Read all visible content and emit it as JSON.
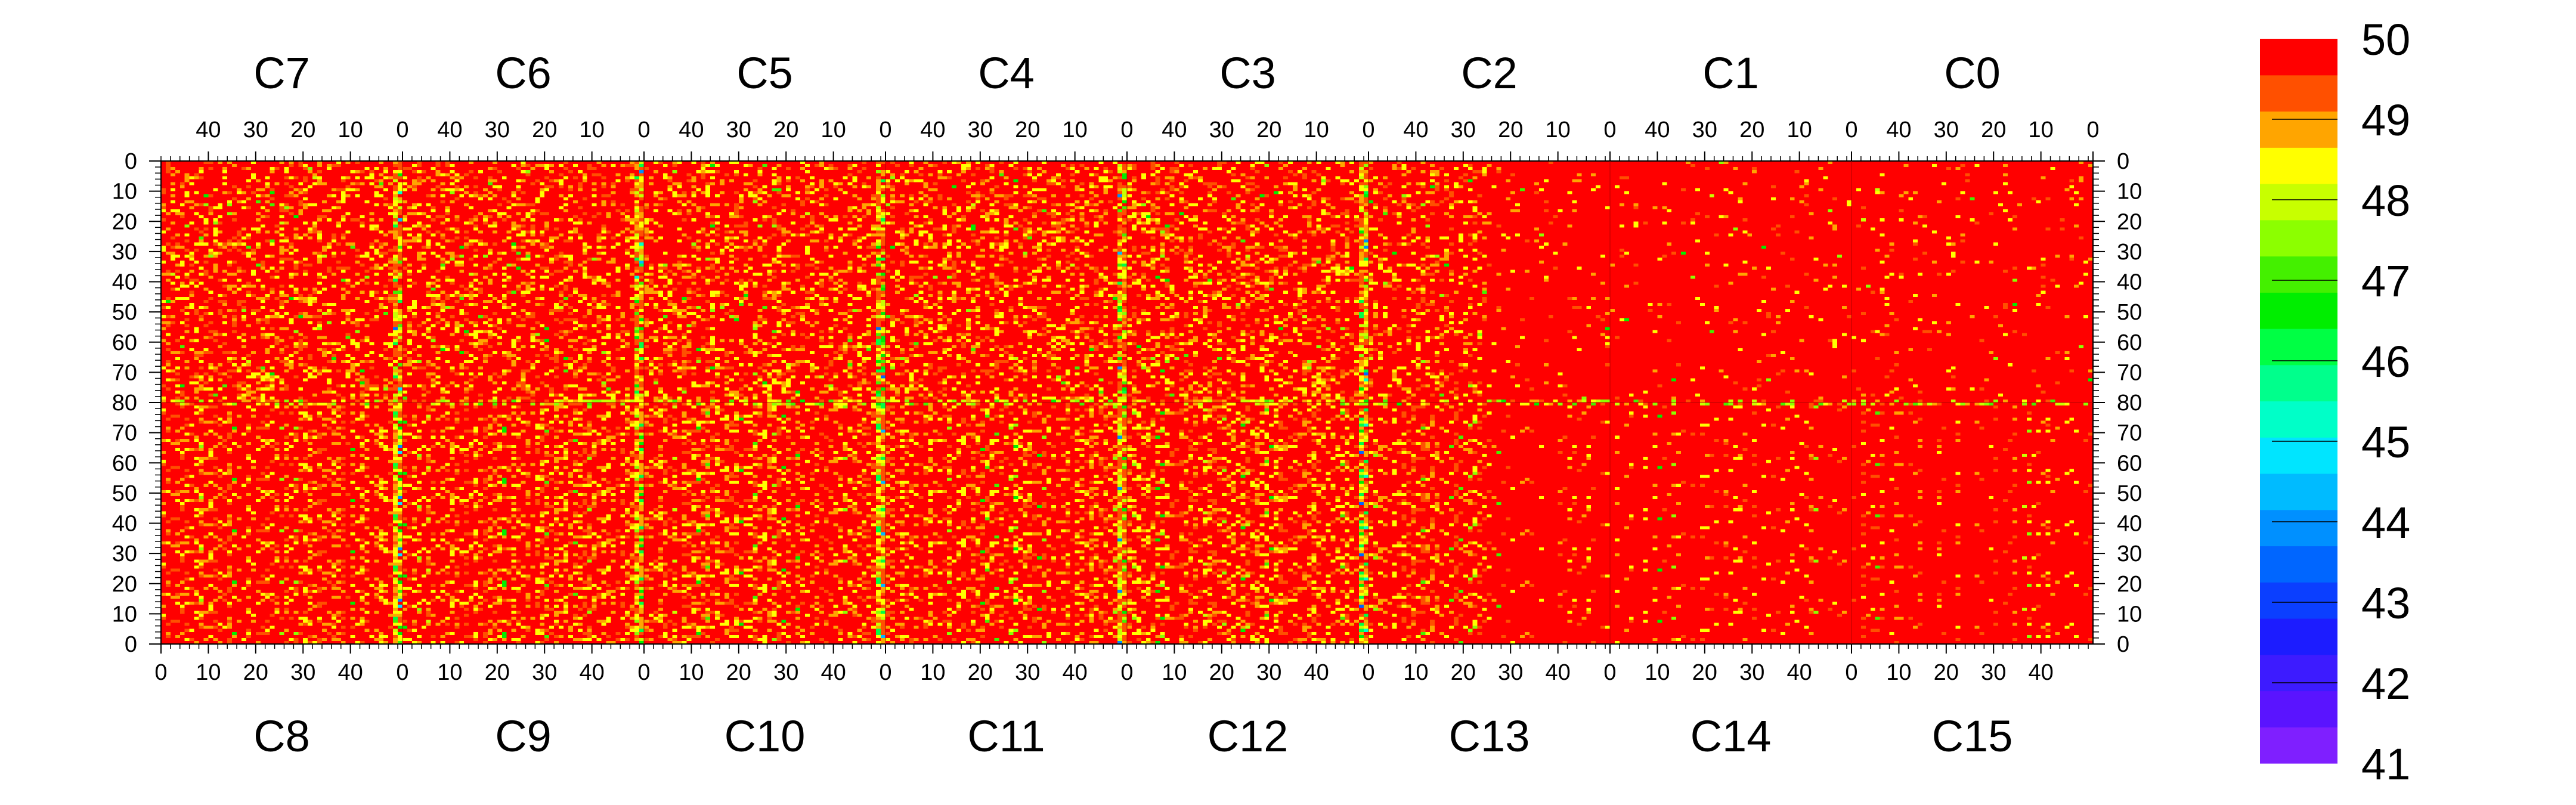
{
  "chart_data": {
    "type": "heatmap",
    "title": "",
    "xlabel": "",
    "ylabel": "",
    "top_row_chips": [
      "C7",
      "C6",
      "C5",
      "C4",
      "C3",
      "C2",
      "C1",
      "C0"
    ],
    "bottom_row_chips": [
      "C8",
      "C9",
      "C10",
      "C11",
      "C12",
      "C13",
      "C14",
      "C15"
    ],
    "chip_columns": 51,
    "rows_per_half": 80,
    "top_axis_ticks": [
      "40",
      "30",
      "20",
      "10",
      "0"
    ],
    "bottom_axis_ticks": [
      "0",
      "10",
      "20",
      "30",
      "40"
    ],
    "top_half_y_ticks": [
      "0",
      "10",
      "20",
      "30",
      "40",
      "50",
      "60",
      "70",
      "80"
    ],
    "bottom_half_y_ticks": [
      "70",
      "60",
      "50",
      "40",
      "30",
      "20",
      "10",
      "0"
    ],
    "top_half_y_axis_direction": "row 0 at top edge, increasing downward to 80 at the middle",
    "bottom_half_y_axis_direction": "row 0 at bottom edge, increasing upward toward the middle",
    "zlim": [
      41,
      50
    ],
    "colorbar": {
      "ticks": [
        "50",
        "49",
        "48",
        "47",
        "46",
        "45",
        "44",
        "43",
        "42",
        "41"
      ],
      "levels": 20,
      "colors": [
        "#7f1fff",
        "#5a14ff",
        "#3d1bff",
        "#1c1cff",
        "#0b3fff",
        "#0066ff",
        "#0090ff",
        "#00bbff",
        "#00e5ff",
        "#00ffc8",
        "#00ff8c",
        "#00ff44",
        "#00ee00",
        "#44f000",
        "#8cff00",
        "#c8ff00",
        "#ffff00",
        "#ffa500",
        "#ff5000",
        "#ff0000"
      ]
    },
    "description_of_values": "Most cells are at the maximum value 50 (red). Scattered cells at 48-49 (orange/yellow). Column 0 of each chip in the left six chip-pairs and the middle row band show lower values down to about 44-46 (green/cyan), with rare cells near 43.",
    "low_value_columns": {
      "chip_column_0_of_bottom_chips": [
        "C9",
        "C10",
        "C11",
        "C12",
        "C13"
      ],
      "noisy_chips": [
        "C7",
        "C6",
        "C5",
        "C4",
        "C3",
        "C8",
        "C9",
        "C10",
        "C11",
        "C12"
      ],
      "quiet_chips": [
        "C1",
        "C0",
        "C14",
        "C15"
      ],
      "partly_quiet_chips": [
        "C2",
        "C13"
      ]
    },
    "grid": false,
    "legend_placement": "right colorbar"
  }
}
